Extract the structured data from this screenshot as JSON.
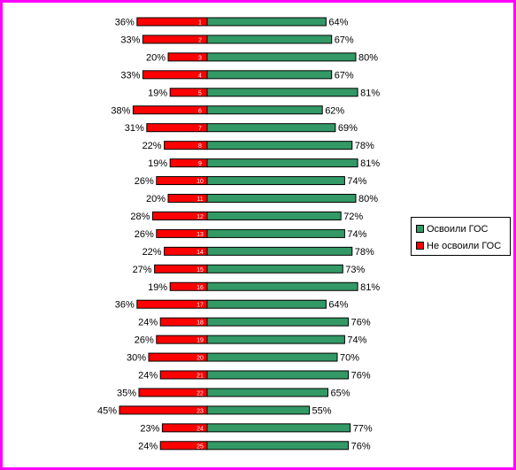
{
  "chart_data": {
    "type": "bar",
    "orientation": "horizontal-diverging",
    "categories": [
      "1",
      "2",
      "3",
      "4",
      "5",
      "6",
      "7",
      "8",
      "9",
      "10",
      "11",
      "12",
      "13",
      "14",
      "15",
      "16",
      "17",
      "18",
      "19",
      "20",
      "21",
      "22",
      "23",
      "24",
      "25"
    ],
    "series": [
      {
        "name": "Не освоили ГОС",
        "color": "#ff0000",
        "values": [
          36,
          33,
          20,
          33,
          19,
          38,
          31,
          22,
          19,
          26,
          20,
          28,
          26,
          22,
          27,
          19,
          36,
          24,
          26,
          30,
          24,
          35,
          45,
          23,
          24
        ],
        "labels": [
          "36%",
          "33%",
          "20%",
          "33%",
          "19%",
          "38%",
          "31%",
          "22%",
          "19%",
          "26%",
          "20%",
          "28%",
          "26%",
          "22%",
          "27%",
          "19%",
          "36%",
          "24%",
          "26%",
          "30%",
          "24%",
          "35%",
          "45%",
          "23%",
          "24%"
        ]
      },
      {
        "name": "Освоили ГОС",
        "color": "#339966",
        "values": [
          64,
          67,
          80,
          67,
          81,
          62,
          69,
          78,
          81,
          74,
          80,
          72,
          74,
          78,
          73,
          81,
          64,
          76,
          74,
          70,
          76,
          65,
          55,
          77,
          76
        ],
        "labels": [
          "64%",
          "67%",
          "80%",
          "67%",
          "81%",
          "62%",
          "69%",
          "78%",
          "81%",
          "74%",
          "80%",
          "72%",
          "74%",
          "78%",
          "73%",
          "81%",
          "64%",
          "76%",
          "74%",
          "70%",
          "76%",
          "65%",
          "55%",
          "77%",
          "76%"
        ]
      }
    ],
    "legend_position": "right",
    "grid": false
  },
  "legend": {
    "items": [
      {
        "label": "Освоили ГОС",
        "color": "#339966"
      },
      {
        "label": "Не освоили ГОС",
        "color": "#ff0000"
      }
    ]
  },
  "colors": {
    "frame": "#ff00ff",
    "background": "#ffffff"
  }
}
